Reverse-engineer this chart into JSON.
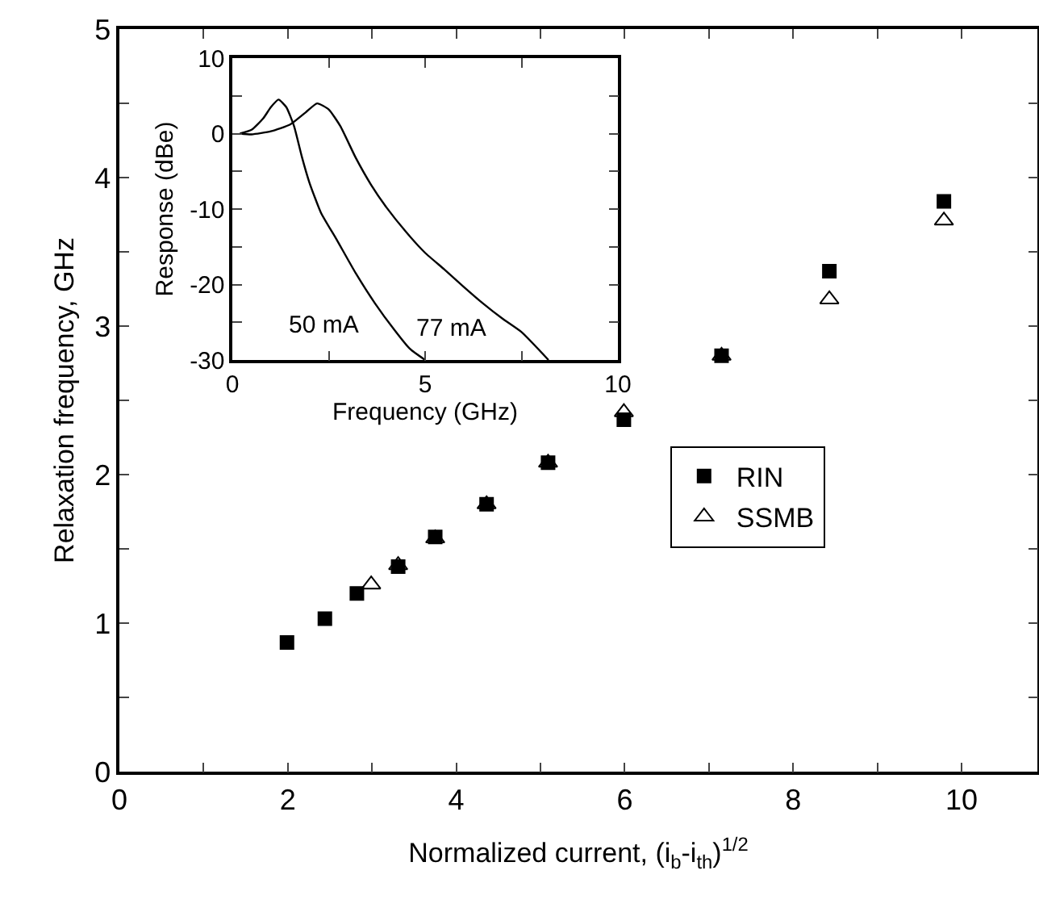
{
  "chart_data": [
    {
      "type": "scatter",
      "xlabel": "Normalized current, (i$_{b}$-i$_{th}$)$^{1/2}$",
      "ylabel": "Relaxation frequency, GHz",
      "xlim": [
        0,
        10.9
      ],
      "xticks": [
        0,
        {
          "value": 1,
          "label": null
        },
        2,
        {
          "value": 3,
          "label": null
        },
        4,
        {
          "value": 5,
          "label": null
        },
        6,
        {
          "value": 7,
          "label": null
        },
        8,
        {
          "value": 9,
          "label": null
        },
        10
      ],
      "ylim": [
        0,
        5
      ],
      "yticks": [
        0,
        {
          "value": 0.5,
          "label": null
        },
        1,
        {
          "value": 1.5,
          "label": null
        },
        2,
        {
          "value": 2.5,
          "label": null
        },
        3,
        {
          "value": 3.5,
          "label": null
        },
        4,
        {
          "value": 4.5,
          "label": null
        },
        5
      ],
      "legend": "center right",
      "series": [
        {
          "name": "RIN",
          "color": "#000000",
          "marker": "square",
          "x": [
            1.99,
            2.44,
            2.82,
            3.31,
            3.75,
            4.36,
            5.09,
            5.99,
            7.15,
            8.43,
            9.79
          ],
          "values": [
            0.87,
            1.03,
            1.2,
            1.38,
            1.58,
            1.8,
            2.08,
            2.37,
            2.8,
            3.37,
            3.84
          ]
        },
        {
          "name": "SSMB",
          "color": "#000000",
          "marker": "triangle",
          "x": [
            2.99,
            3.31,
            3.75,
            4.36,
            5.09,
            5.99,
            7.15,
            8.43,
            9.79
          ],
          "values": [
            1.26,
            1.39,
            1.57,
            1.8,
            2.08,
            2.42,
            2.8,
            3.18,
            3.71
          ]
        }
      ]
    },
    {
      "type": "line",
      "xlabel": "Frequency (GHz)",
      "ylabel": "Response (dBe)",
      "xlim": [
        0,
        10
      ],
      "xticks": [
        0,
        {
          "value": 2.5,
          "label": null
        },
        5,
        {
          "value": 7.5,
          "label": null
        },
        10
      ],
      "ylim": [
        -30,
        10
      ],
      "yticks": [
        -30,
        {
          "value": -25,
          "label": null
        },
        -20,
        {
          "value": -15,
          "label": null
        },
        -10,
        {
          "value": -5,
          "label": null
        },
        0,
        {
          "value": 5,
          "label": null
        },
        10
      ],
      "marker": "none",
      "line_style": "solid",
      "annotations": [
        {
          "text": "50 mA",
          "x": 4.2,
          "y": -26
        },
        {
          "text": "77 mA",
          "x": 7.5,
          "y": -26.3
        }
      ],
      "series": [
        {
          "color": "#000000",
          "x": [
            0.2,
            0.5,
            0.8,
            1.0,
            1.2,
            1.4,
            1.6,
            1.8,
            2.0,
            2.3,
            2.7,
            3.2,
            3.7,
            4.2,
            4.6,
            5.0
          ],
          "values": [
            0,
            0.5,
            2,
            3.5,
            4.5,
            3.5,
            1,
            -3,
            -6.5,
            -10.5,
            -14,
            -18.5,
            -22.5,
            -26,
            -28.5,
            -30
          ]
        },
        {
          "color": "#000000",
          "x": [
            0.2,
            0.5,
            1.0,
            1.5,
            1.9,
            2.2,
            2.5,
            2.8,
            3.2,
            3.6,
            4.0,
            4.5,
            5.0,
            5.5,
            6.0,
            6.5,
            7.0,
            7.5,
            8.2
          ],
          "values": [
            0,
            -0.1,
            0.3,
            1.2,
            2.8,
            4,
            3.2,
            1,
            -3.2,
            -6.8,
            -9.8,
            -13,
            -15.8,
            -18,
            -20.3,
            -22.5,
            -24.5,
            -26.3,
            -30
          ]
        }
      ]
    }
  ]
}
